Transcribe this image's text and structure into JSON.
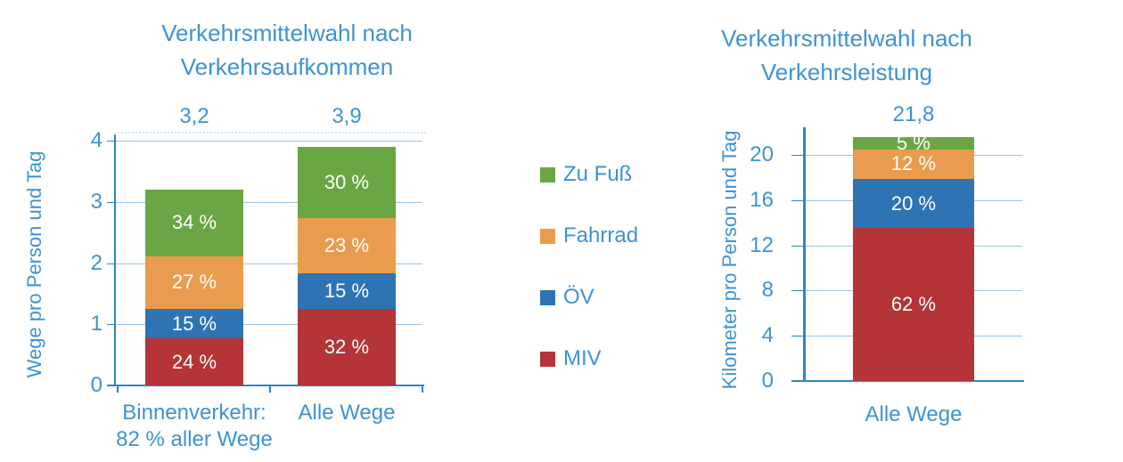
{
  "colors": {
    "text_blue": "#3E93D0",
    "axis_blue": "#2E86C3",
    "gridline_blue": "#9CC3E5",
    "bar_green": "#6AA644",
    "bar_orange": "#EA9C4E",
    "bar_blue": "#2E74B5",
    "bar_red": "#B43438",
    "segment_label_white": "#FFFFFF"
  },
  "legend": {
    "items": [
      {
        "label": "Zu Fuß",
        "color": "#6AA644",
        "swatch": "bar_green"
      },
      {
        "label": "Fahrrad",
        "color": "#EA9C4E",
        "swatch": "bar_orange"
      },
      {
        "label": "ÖV",
        "color": "#2E74B5",
        "swatch": "bar_blue"
      },
      {
        "label": "MIV",
        "color": "#B43438",
        "swatch": "bar_red"
      }
    ]
  },
  "chart_data": [
    {
      "id": "aufkommen",
      "type": "bar",
      "stacked": true,
      "title": "Verkehrsmittelwahl nach Verkehrsaufkommen",
      "title_lines": [
        "Verkehrsmittelwahl nach",
        "Verkehrsaufkommen"
      ],
      "ylabel": "Wege pro Person und Tag",
      "xlabel": "",
      "ylim": [
        0,
        4
      ],
      "yticks": [
        0,
        1,
        2,
        3,
        4
      ],
      "grid": true,
      "categories": [
        "Binnenverkehr:\n82 % aller Wege",
        "Alle Wege"
      ],
      "totals": [
        "3,2",
        "3,9"
      ],
      "total_values": [
        3.2,
        3.9
      ],
      "series": [
        {
          "name": "MIV",
          "key": "miv",
          "color": "#B43438",
          "pct": [
            24,
            32
          ],
          "labels": [
            "24 %",
            "32 %"
          ]
        },
        {
          "name": "ÖV",
          "key": "oev",
          "color": "#2E74B5",
          "pct": [
            15,
            15
          ],
          "labels": [
            "15 %",
            "15 %"
          ]
        },
        {
          "name": "Fahrrad",
          "key": "fahrrad",
          "color": "#EA9C4E",
          "pct": [
            27,
            23
          ],
          "labels": [
            "27 %",
            "23 %"
          ]
        },
        {
          "name": "Zu Fuß",
          "key": "zu-fuss",
          "color": "#6AA644",
          "pct": [
            34,
            30
          ],
          "labels": [
            "34 %",
            "30 %"
          ]
        }
      ]
    },
    {
      "id": "leistung",
      "type": "bar",
      "stacked": true,
      "title": "Verkehrsmittelwahl nach Verkehrsleistung",
      "title_lines": [
        "Verkehrsmittelwahl nach",
        "Verkehrsleistung"
      ],
      "ylabel": "Kilometer pro Person und Tag",
      "xlabel": "",
      "ylim": [
        0,
        22
      ],
      "yticks": [
        0,
        4,
        8,
        12,
        16,
        20
      ],
      "grid": true,
      "categories": [
        "Alle Wege"
      ],
      "totals": [
        "21,8"
      ],
      "total_values": [
        21.8
      ],
      "series": [
        {
          "name": "MIV",
          "key": "miv",
          "color": "#B43438",
          "pct": [
            62
          ],
          "labels": [
            "62 %"
          ]
        },
        {
          "name": "ÖV",
          "key": "oev",
          "color": "#2E74B5",
          "pct": [
            20
          ],
          "labels": [
            "20 %"
          ]
        },
        {
          "name": "Fahrrad",
          "key": "fahrrad",
          "color": "#EA9C4E",
          "pct": [
            12
          ],
          "labels": [
            "12 %"
          ]
        },
        {
          "name": "Zu Fuß",
          "key": "zu-fuss",
          "color": "#6AA644",
          "pct": [
            5
          ],
          "labels": [
            "5 %"
          ]
        }
      ]
    }
  ]
}
